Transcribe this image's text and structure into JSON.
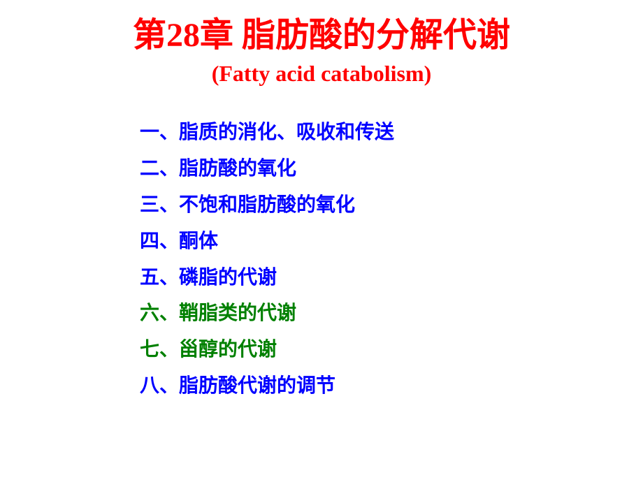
{
  "title": {
    "prefix": "第",
    "chapter_number": "28",
    "suffix": "章 脂肪酸的分解代谢",
    "color": "#ff0000",
    "fontsize": 48
  },
  "subtitle": {
    "text": "(Fatty acid catabolism)",
    "color": "#ff0000",
    "fontsize": 32
  },
  "toc": {
    "fontsize": 28,
    "items": [
      {
        "text": "一、脂质的消化、吸收和传送",
        "color": "#0000ff"
      },
      {
        "text": "二、脂肪酸的氧化",
        "color": "#0000ff"
      },
      {
        "text": "三、不饱和脂肪酸的氧化",
        "color": "#0000ff"
      },
      {
        "text": "四、酮体",
        "color": "#0000ff"
      },
      {
        "text": "五、磷脂的代谢",
        "color": "#0000ff"
      },
      {
        "text": "六、鞘脂类的代谢",
        "color": "#008000"
      },
      {
        "text": "七、甾醇的代谢",
        "color": "#008000"
      },
      {
        "text": "八、脂肪酸代谢的调节",
        "color": "#0000ff"
      }
    ]
  }
}
